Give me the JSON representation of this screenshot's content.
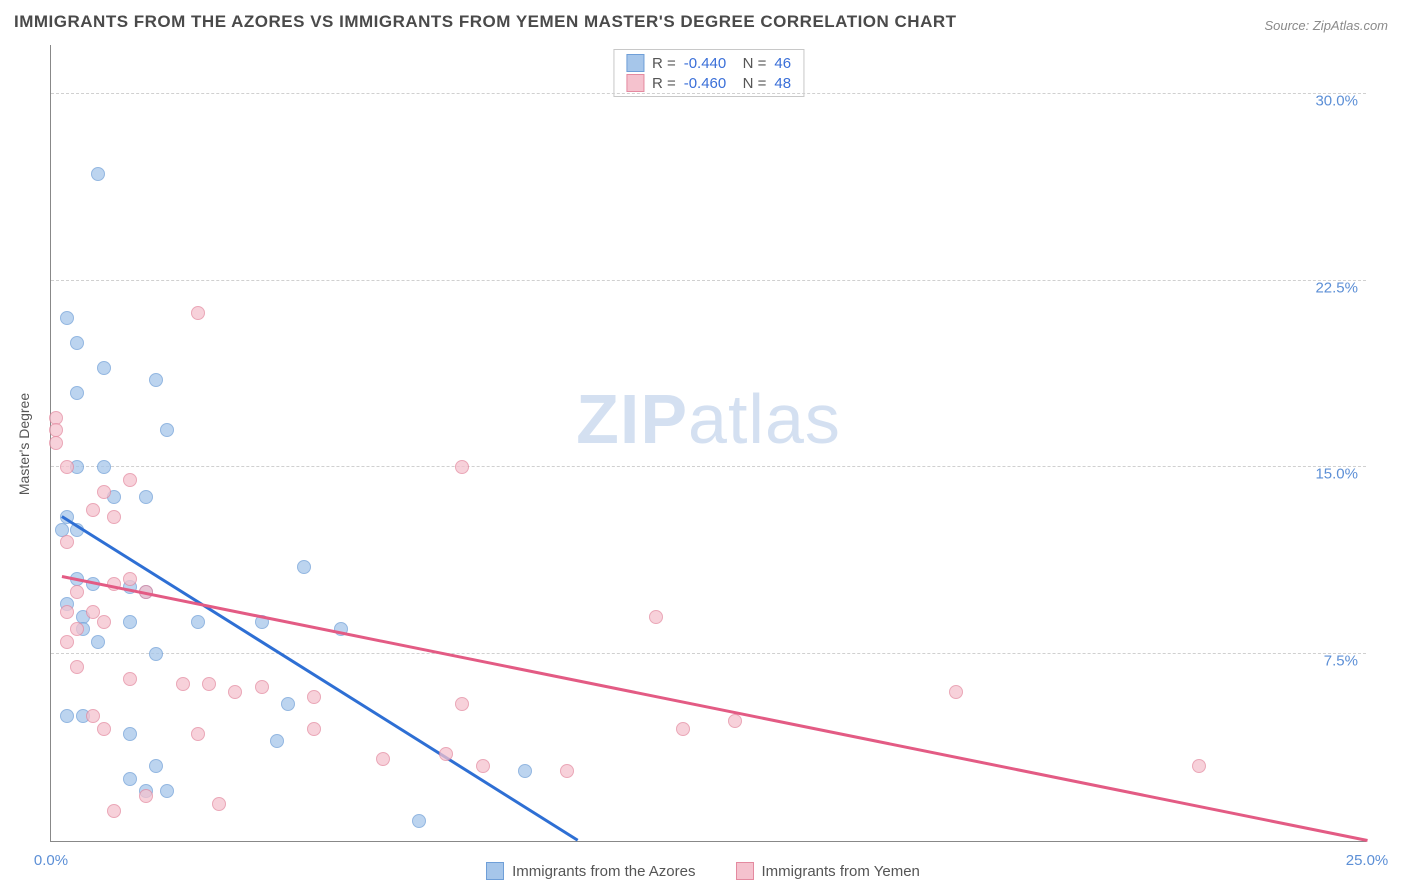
{
  "title": "IMMIGRANTS FROM THE AZORES VS IMMIGRANTS FROM YEMEN MASTER'S DEGREE CORRELATION CHART",
  "source": "Source: ZipAtlas.com",
  "watermark_bold": "ZIP",
  "watermark_rest": "atlas",
  "ylabel": "Master's Degree",
  "chart": {
    "type": "scatter",
    "xlim": [
      0,
      25
    ],
    "ylim": [
      0,
      32
    ],
    "background_color": "#ffffff",
    "grid_color": "#d0d0d0",
    "grid_style": "dashed",
    "axis_color": "#888888",
    "xticks": [
      {
        "value": 0,
        "label": "0.0%"
      },
      {
        "value": 25,
        "label": "25.0%"
      }
    ],
    "yticks": [
      {
        "value": 7.5,
        "label": "7.5%"
      },
      {
        "value": 15.0,
        "label": "15.0%"
      },
      {
        "value": 22.5,
        "label": "22.5%"
      },
      {
        "value": 30.0,
        "label": "30.0%"
      }
    ],
    "series": [
      {
        "name": "Immigrants from the Azores",
        "marker_color": "#a6c6ea",
        "marker_border": "#6f9fd8",
        "trend_color": "#2e6fd4",
        "trend": {
          "x1": 0.2,
          "y1": 13.0,
          "x2": 10.0,
          "y2": 0.0
        },
        "R": "-0.440",
        "N": "46",
        "points": [
          {
            "x": 0.9,
            "y": 26.8
          },
          {
            "x": 0.3,
            "y": 21.0
          },
          {
            "x": 0.5,
            "y": 20.0
          },
          {
            "x": 1.0,
            "y": 19.0
          },
          {
            "x": 2.0,
            "y": 18.5
          },
          {
            "x": 0.5,
            "y": 18.0
          },
          {
            "x": 2.2,
            "y": 16.5
          },
          {
            "x": 0.5,
            "y": 15.0
          },
          {
            "x": 1.0,
            "y": 15.0
          },
          {
            "x": 1.2,
            "y": 13.8
          },
          {
            "x": 1.8,
            "y": 13.8
          },
          {
            "x": 0.3,
            "y": 13.0
          },
          {
            "x": 0.5,
            "y": 12.5
          },
          {
            "x": 0.2,
            "y": 12.5
          },
          {
            "x": 4.8,
            "y": 11.0
          },
          {
            "x": 0.5,
            "y": 10.5
          },
          {
            "x": 0.8,
            "y": 10.3
          },
          {
            "x": 1.5,
            "y": 10.2
          },
          {
            "x": 1.8,
            "y": 10.0
          },
          {
            "x": 0.3,
            "y": 9.5
          },
          {
            "x": 0.6,
            "y": 9.0
          },
          {
            "x": 1.5,
            "y": 8.8
          },
          {
            "x": 2.8,
            "y": 8.8
          },
          {
            "x": 4.0,
            "y": 8.8
          },
          {
            "x": 5.5,
            "y": 8.5
          },
          {
            "x": 0.6,
            "y": 8.5
          },
          {
            "x": 0.9,
            "y": 8.0
          },
          {
            "x": 2.0,
            "y": 7.5
          },
          {
            "x": 0.3,
            "y": 5.0
          },
          {
            "x": 0.6,
            "y": 5.0
          },
          {
            "x": 4.5,
            "y": 5.5
          },
          {
            "x": 1.5,
            "y": 4.3
          },
          {
            "x": 2.0,
            "y": 3.0
          },
          {
            "x": 4.3,
            "y": 4.0
          },
          {
            "x": 1.5,
            "y": 2.5
          },
          {
            "x": 1.8,
            "y": 2.0
          },
          {
            "x": 2.2,
            "y": 2.0
          },
          {
            "x": 9.0,
            "y": 2.8
          },
          {
            "x": 7.0,
            "y": 0.8
          }
        ]
      },
      {
        "name": "Immigrants from Yemen",
        "marker_color": "#f5c2ce",
        "marker_border": "#e48aa0",
        "trend_color": "#e35b84",
        "trend": {
          "x1": 0.2,
          "y1": 10.6,
          "x2": 25.0,
          "y2": 0.0
        },
        "R": "-0.460",
        "N": "48",
        "points": [
          {
            "x": 2.8,
            "y": 21.2
          },
          {
            "x": 0.1,
            "y": 17.0
          },
          {
            "x": 0.1,
            "y": 16.5
          },
          {
            "x": 0.1,
            "y": 16.0
          },
          {
            "x": 7.8,
            "y": 15.0
          },
          {
            "x": 0.3,
            "y": 15.0
          },
          {
            "x": 1.5,
            "y": 14.5
          },
          {
            "x": 1.0,
            "y": 14.0
          },
          {
            "x": 0.8,
            "y": 13.3
          },
          {
            "x": 1.2,
            "y": 13.0
          },
          {
            "x": 0.3,
            "y": 12.0
          },
          {
            "x": 1.2,
            "y": 10.3
          },
          {
            "x": 0.5,
            "y": 10.0
          },
          {
            "x": 1.5,
            "y": 10.5
          },
          {
            "x": 1.8,
            "y": 10.0
          },
          {
            "x": 0.3,
            "y": 9.2
          },
          {
            "x": 0.8,
            "y": 9.2
          },
          {
            "x": 1.0,
            "y": 8.8
          },
          {
            "x": 11.5,
            "y": 9.0
          },
          {
            "x": 0.5,
            "y": 8.5
          },
          {
            "x": 0.3,
            "y": 8.0
          },
          {
            "x": 0.5,
            "y": 7.0
          },
          {
            "x": 1.5,
            "y": 6.5
          },
          {
            "x": 2.5,
            "y": 6.3
          },
          {
            "x": 3.0,
            "y": 6.3
          },
          {
            "x": 3.5,
            "y": 6.0
          },
          {
            "x": 4.0,
            "y": 6.2
          },
          {
            "x": 5.0,
            "y": 5.8
          },
          {
            "x": 17.2,
            "y": 6.0
          },
          {
            "x": 0.8,
            "y": 5.0
          },
          {
            "x": 1.0,
            "y": 4.5
          },
          {
            "x": 2.8,
            "y": 4.3
          },
          {
            "x": 5.0,
            "y": 4.5
          },
          {
            "x": 7.8,
            "y": 5.5
          },
          {
            "x": 12.0,
            "y": 4.5
          },
          {
            "x": 13.0,
            "y": 4.8
          },
          {
            "x": 6.3,
            "y": 3.3
          },
          {
            "x": 7.5,
            "y": 3.5
          },
          {
            "x": 8.2,
            "y": 3.0
          },
          {
            "x": 9.8,
            "y": 2.8
          },
          {
            "x": 21.8,
            "y": 3.0
          },
          {
            "x": 1.8,
            "y": 1.8
          },
          {
            "x": 3.2,
            "y": 1.5
          },
          {
            "x": 1.2,
            "y": 1.2
          }
        ]
      }
    ]
  },
  "bottom_legend": [
    {
      "label": "Immigrants from the Azores",
      "fill": "#a6c6ea",
      "border": "#6f9fd8"
    },
    {
      "label": "Immigrants from Yemen",
      "fill": "#f5c2ce",
      "border": "#e48aa0"
    }
  ]
}
